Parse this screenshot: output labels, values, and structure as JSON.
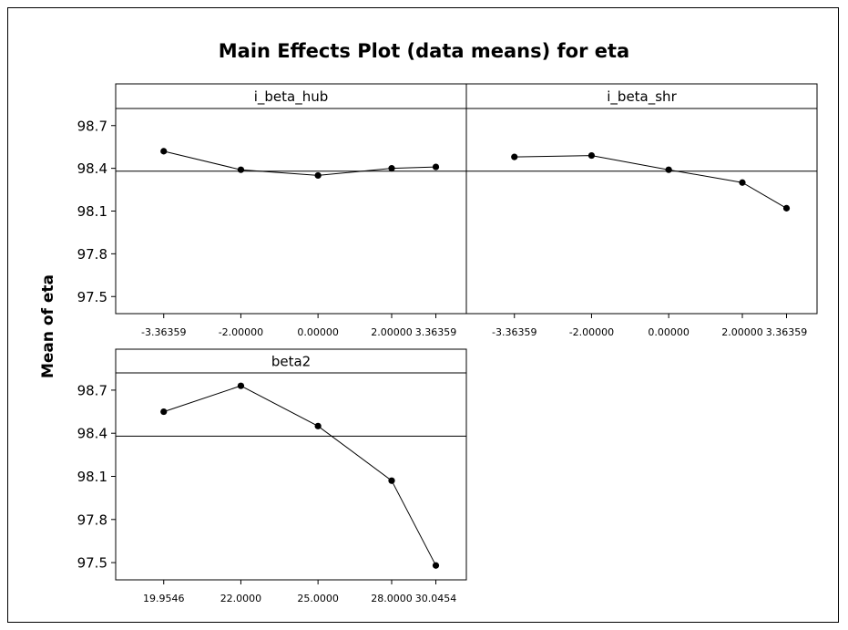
{
  "chart_data": {
    "type": "line",
    "title": "Main Effects Plot (data means) for eta",
    "ylabel": "Mean of eta",
    "ylim": [
      97.38,
      98.82
    ],
    "yticks": [
      "98.7",
      "98.4",
      "98.1",
      "97.8",
      "97.5"
    ],
    "ytick_values": [
      98.7,
      98.4,
      98.1,
      97.8,
      97.5
    ],
    "reference_line": 98.38,
    "panels": [
      {
        "name": "i_beta_hub",
        "categories": [
          "-3.36359",
          "-2.00000",
          "0.00000",
          "2.00000",
          "3.36359"
        ],
        "values": [
          98.52,
          98.39,
          98.35,
          98.4,
          98.41
        ]
      },
      {
        "name": "i_beta_shr",
        "categories": [
          "-3.36359",
          "-2.00000",
          "0.00000",
          "2.00000",
          "3.36359"
        ],
        "values": [
          98.48,
          98.49,
          98.39,
          98.3,
          98.12
        ]
      },
      {
        "name": "beta2",
        "categories": [
          "19.9546",
          "22.0000",
          "25.0000",
          "28.0000",
          "30.0454"
        ],
        "values": [
          98.55,
          98.73,
          98.45,
          98.07,
          97.48
        ]
      }
    ]
  }
}
